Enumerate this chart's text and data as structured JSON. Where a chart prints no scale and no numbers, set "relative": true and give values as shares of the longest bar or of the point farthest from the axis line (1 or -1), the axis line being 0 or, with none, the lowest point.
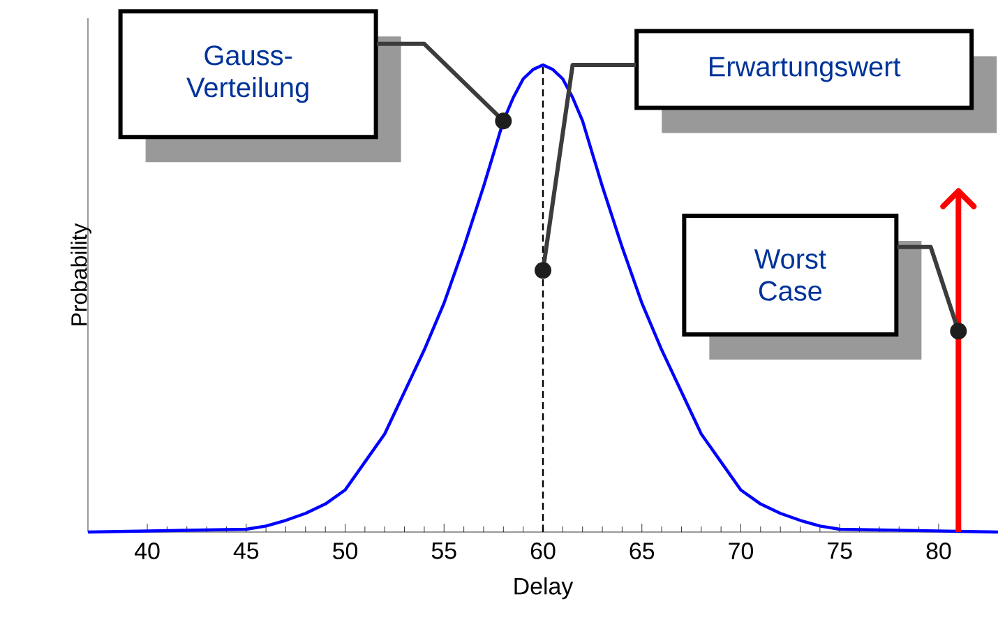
{
  "chart_data": {
    "type": "line",
    "xlabel": "Delay",
    "ylabel": "Probability",
    "relative": true,
    "xlim": [
      37,
      83
    ],
    "xticks": [
      40,
      45,
      50,
      55,
      60,
      65,
      70,
      75,
      80
    ],
    "grid": false,
    "marker": "none",
    "line_style": "solid",
    "series": [
      {
        "color": "#0000ff",
        "x": [
          37,
          45,
          46,
          47,
          48,
          49,
          50,
          51,
          52,
          53,
          54,
          55,
          56,
          57,
          57.5,
          58,
          58.5,
          59,
          59.5,
          60,
          60.5,
          61,
          61.5,
          62,
          62.5,
          63,
          64,
          65,
          66,
          67,
          68,
          69,
          70,
          71,
          72,
          73,
          74,
          75,
          83
        ],
        "values": [
          0,
          0.006,
          0.013,
          0.025,
          0.04,
          0.06,
          0.09,
          0.15,
          0.21,
          0.3,
          0.39,
          0.49,
          0.61,
          0.74,
          0.81,
          0.88,
          0.93,
          0.97,
          0.99,
          1,
          0.99,
          0.97,
          0.93,
          0.88,
          0.81,
          0.74,
          0.61,
          0.49,
          0.39,
          0.3,
          0.21,
          0.15,
          0.09,
          0.06,
          0.04,
          0.025,
          0.013,
          0.006,
          0
        ]
      },
      {
        "color": "#ff0000",
        "x": [
          81,
          81
        ],
        "values": [
          0,
          0.73
        ]
      }
    ],
    "ref_lines": [
      {
        "axis": "x",
        "value": 60,
        "color": "#000000",
        "line_style": "dashed"
      }
    ],
    "annotations": [
      "Gauss-Verteilung",
      "Erwartungswert",
      "Worst Case"
    ]
  }
}
